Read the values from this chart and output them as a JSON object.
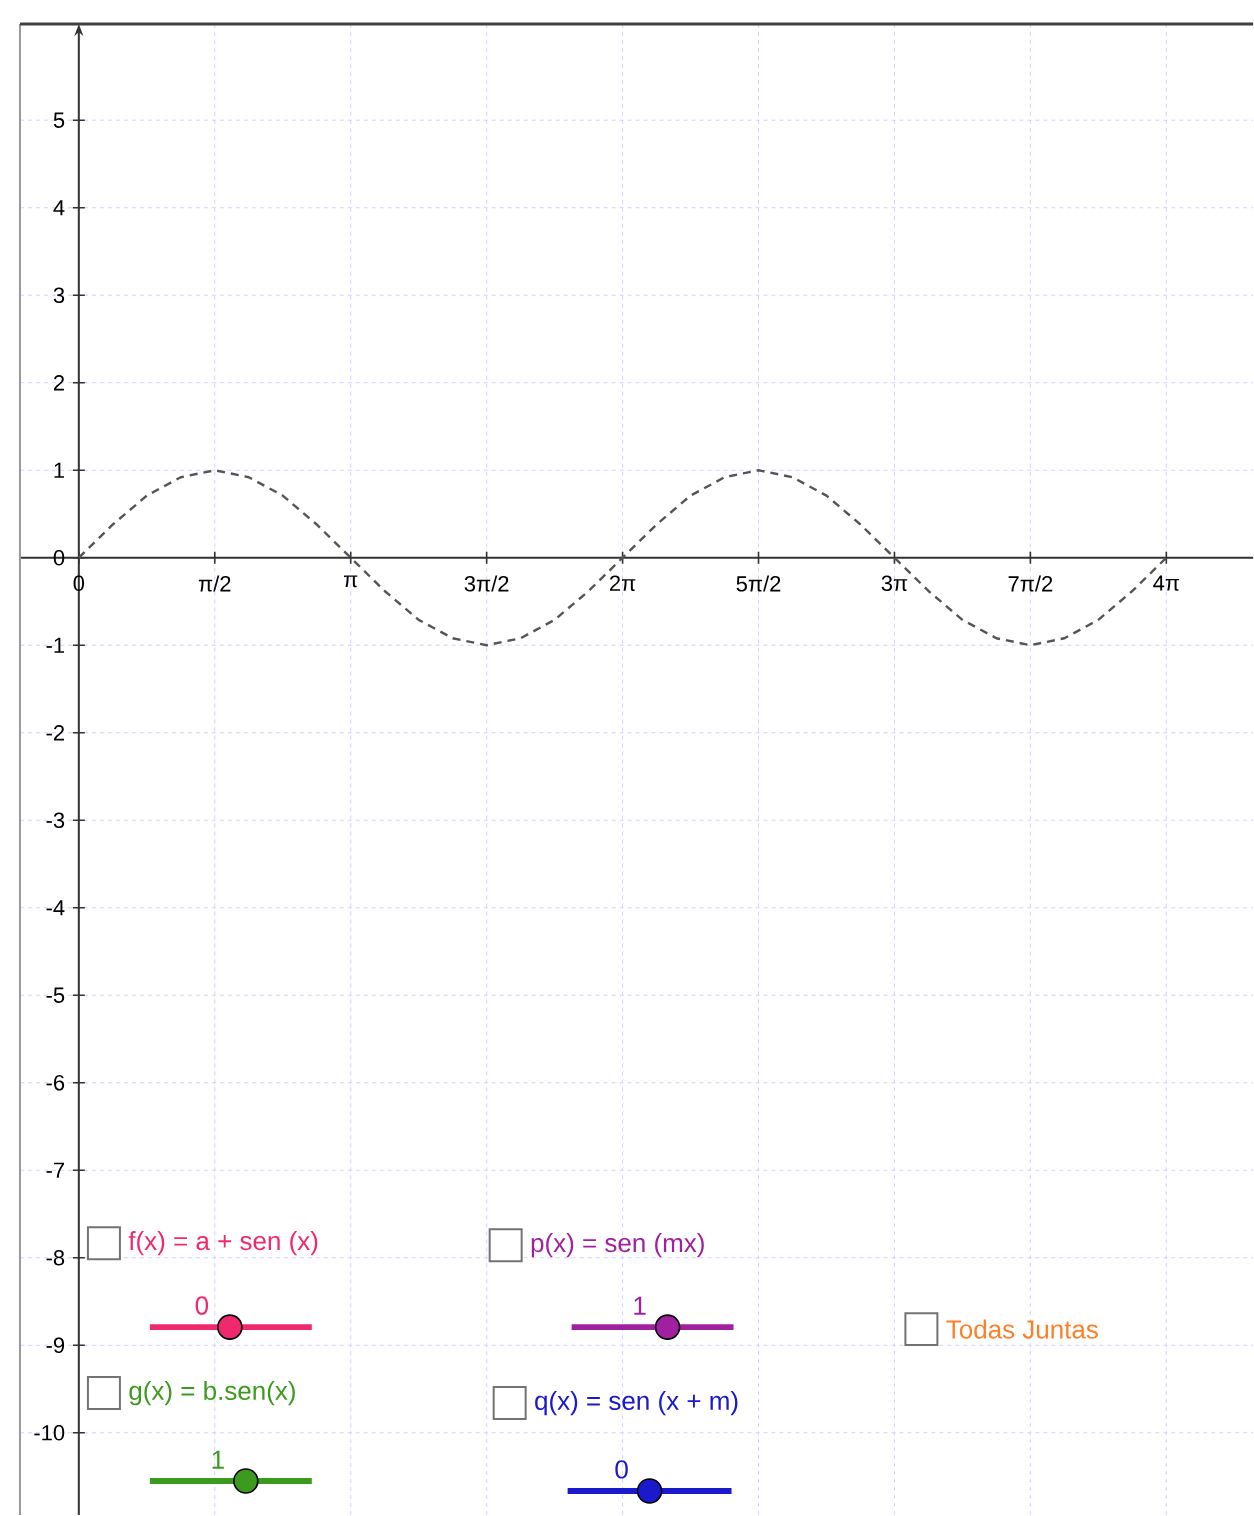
{
  "chart_data": {
    "type": "line",
    "x": [
      0,
      0.3927,
      0.7854,
      1.1781,
      1.5708,
      1.9635,
      2.3562,
      2.7489,
      3.1416,
      3.5343,
      3.927,
      4.3197,
      4.7124,
      5.1051,
      5.4978,
      5.8905,
      6.2832,
      6.6759,
      7.0686,
      7.4613,
      7.854,
      8.2467,
      8.6394,
      9.0321,
      9.4248,
      9.8175,
      10.2102,
      10.6029,
      10.9956,
      11.3883,
      11.781,
      12.1737,
      12.5664
    ],
    "series": [
      {
        "color": "#555555",
        "values": [
          0,
          0.38,
          0.71,
          0.92,
          1,
          0.92,
          0.71,
          0.38,
          0,
          -0.38,
          -0.71,
          -0.92,
          -1,
          -0.92,
          -0.71,
          -0.38,
          0,
          0.38,
          0.71,
          0.92,
          1,
          0.92,
          0.71,
          0.38,
          0,
          -0.38,
          -0.71,
          -0.92,
          -1,
          -0.92,
          -0.71,
          -0.38,
          0
        ]
      }
    ],
    "xlim": [
      -0.68,
      13.57
    ],
    "ylim": [
      -10.94,
      6.1
    ],
    "xticks": [
      0,
      {
        "value": 1.5708,
        "label": "π/2"
      },
      {
        "value": 3.1416,
        "label": "π"
      },
      {
        "value": 4.7124,
        "label": "3π/2"
      },
      {
        "value": 6.2832,
        "label": "2π"
      },
      {
        "value": 7.854,
        "label": "5π/2"
      },
      {
        "value": 9.4248,
        "label": "3π"
      },
      {
        "value": 10.9956,
        "label": "7π/2"
      },
      {
        "value": 12.5664,
        "label": "4π"
      }
    ],
    "yticks": [
      -10,
      -9,
      -8,
      -7,
      -6,
      -5,
      -4,
      -3,
      -2,
      -1,
      0,
      1,
      2,
      3,
      4,
      5
    ],
    "grid": true,
    "line_style": "dashed",
    "marker": "none",
    "annotations": [
      "f(x) = a + sen (x)",
      "p(x) = sen (mx)",
      "Todas Juntas",
      "g(x) = b.sen(x)",
      "q(x) = sen (x + m)",
      "0",
      "1",
      "1",
      "0"
    ]
  }
}
